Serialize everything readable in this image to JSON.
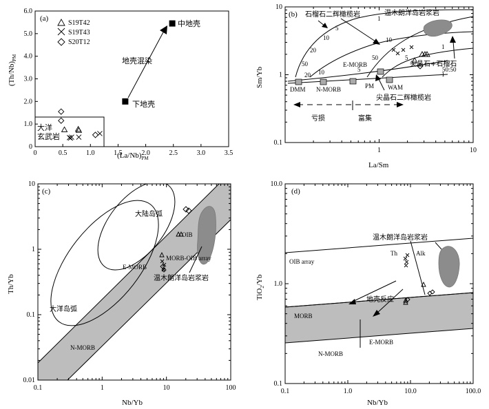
{
  "chart_data": [
    {
      "panel": "(a)",
      "type": "scatter",
      "xlabel": "(La/Nb)",
      "xlabel_sub": "PM",
      "ylabel": "(Th/Nb)",
      "ylabel_sub": "PM",
      "xlim": [
        0,
        3.5
      ],
      "ylim": [
        0,
        6.0
      ],
      "xticks": [
        "0",
        "0.5",
        "1.0",
        "1.5",
        "2.0",
        "2.5",
        "3.0",
        "3.5"
      ],
      "yticks": [
        "0",
        "1.0",
        "2.0",
        "3.0",
        "4.0",
        "5.0",
        "6.0"
      ],
      "legend": [
        {
          "symbol": "triangle",
          "label": "S19T42"
        },
        {
          "symbol": "cross",
          "label": "S19T43"
        },
        {
          "symbol": "diamond",
          "label": "S20T12"
        }
      ],
      "series": [
        {
          "name": "S19T42",
          "symbol": "triangle",
          "points": [
            [
              0.53,
              0.75
            ],
            [
              0.78,
              0.77
            ],
            [
              0.79,
              0.72
            ]
          ]
        },
        {
          "name": "S19T43",
          "symbol": "cross",
          "points": [
            [
              0.62,
              0.4
            ],
            [
              0.66,
              0.42
            ],
            [
              0.79,
              0.42
            ],
            [
              1.17,
              0.58
            ],
            [
              0.64,
              0.38
            ]
          ]
        },
        {
          "name": "S20T12",
          "symbol": "diamond",
          "points": [
            [
              0.47,
              1.55
            ],
            [
              0.47,
              1.15
            ],
            [
              1.09,
              0.52
            ]
          ]
        }
      ],
      "references": [
        {
          "label": "中地壳",
          "x": 2.48,
          "y": 5.45
        },
        {
          "label": "下地壳",
          "x": 1.63,
          "y": 2.0
        }
      ],
      "annotations": [
        "地壳混染",
        "大洋",
        "玄武岩"
      ]
    },
    {
      "panel": "(b)",
      "type": "line",
      "xlabel": "La/Sm",
      "ylabel": "Sm/Yb",
      "scale": "log-log",
      "xlim": [
        0.1,
        10
      ],
      "ylim": [
        0.1,
        10
      ],
      "xticks": [
        "1",
        "10"
      ],
      "yticks": [
        "0.1",
        "1",
        "10"
      ],
      "annotations": [
        "石榴石二辉橄榄岩",
        "温木朗洋岛岩浆岩",
        "尖晶石+石榴石",
        "50:50",
        "尖晶石二辉橄榄岩",
        "E-MORB",
        "N-MORB",
        "DMM",
        "PM",
        "WAM",
        "亏损",
        "富集"
      ],
      "curve_labels": [
        "1",
        "5",
        "10",
        "20",
        "50"
      ]
    },
    {
      "panel": "(c)",
      "type": "scatter",
      "xlabel": "Nb/Yb",
      "ylabel": "Th/Yb",
      "scale": "log-log",
      "xlim": [
        0.1,
        100
      ],
      "ylim": [
        0.01,
        10
      ],
      "xticks": [
        "0.1",
        "1",
        "10",
        "100"
      ],
      "yticks": [
        "0.01",
        "0.1",
        "1",
        "10"
      ],
      "annotations": [
        "大陆岛弧",
        "大洋岛弧",
        "OIB",
        "MORB-OIB array",
        "E-MORB",
        "N-MORB",
        "温木朗洋岛岩浆岩"
      ]
    },
    {
      "panel": "(d)",
      "type": "scatter",
      "xlabel": "Nb/Yb",
      "ylabel": "TiO",
      "ylabel_sub": "2",
      "ylabel_tail": "/Yb",
      "scale": "log-log",
      "xlim": [
        0.1,
        100
      ],
      "ylim": [
        0.1,
        10
      ],
      "xticks": [
        "0.1",
        "1.0",
        "10.0",
        "100.0"
      ],
      "yticks": [
        "0.1",
        "1.0",
        "10.0"
      ],
      "annotations": [
        "温木朗洋岛岩浆岩",
        "OIB array",
        "Th",
        "Alk",
        "地壳反应",
        "MORB",
        "N-MORB",
        "E-MORB"
      ]
    }
  ]
}
